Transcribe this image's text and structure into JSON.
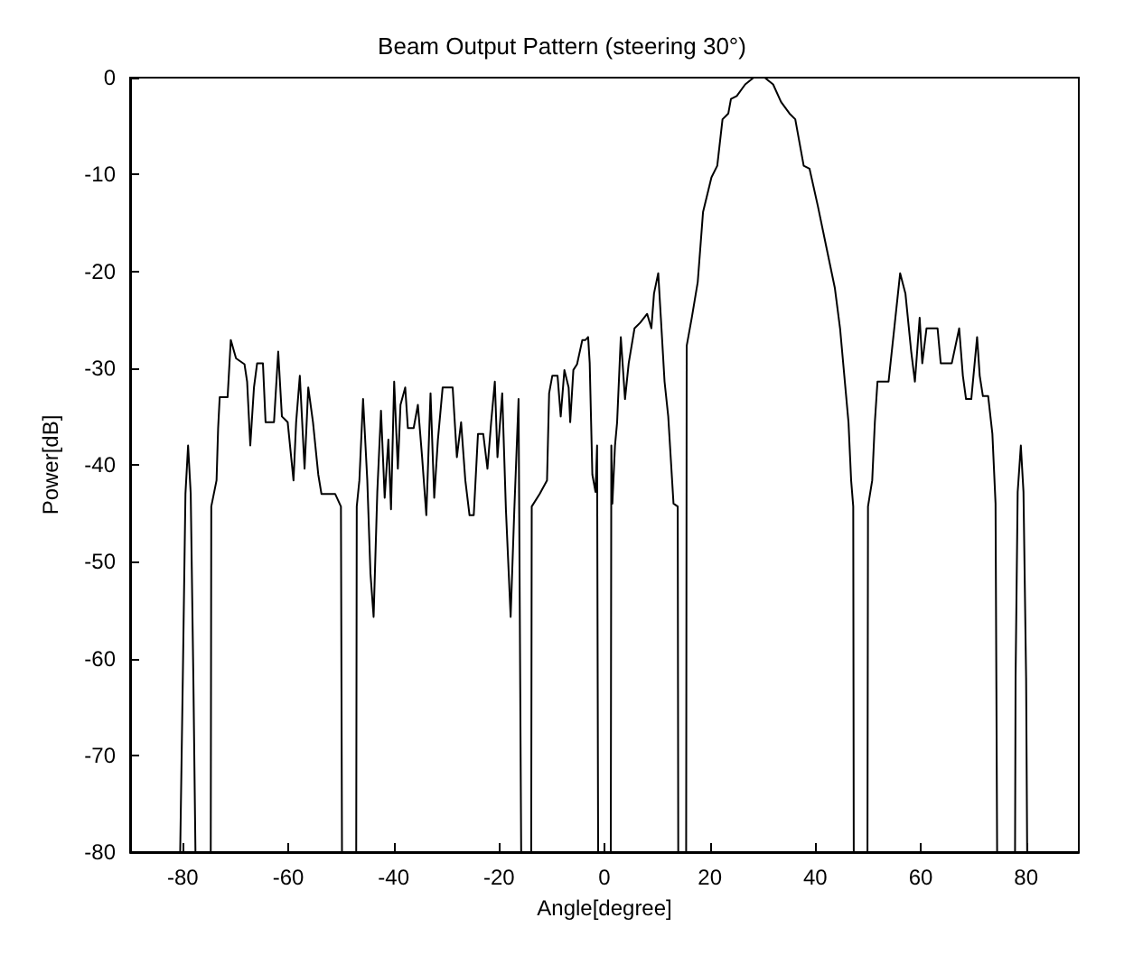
{
  "chart_data": {
    "type": "line",
    "title": "Beam Output Pattern (steering 30°)",
    "xlabel": "Angle[degree]",
    "ylabel": "Power[dB]",
    "xlim": [
      -90,
      90
    ],
    "xticks": [
      -80,
      -60,
      -40,
      -20,
      0,
      20,
      40,
      60,
      80
    ],
    "ylim": [
      -80,
      0
    ],
    "yticks": [
      -80,
      -70,
      -60,
      -50,
      -40,
      -30,
      -20,
      -10,
      0
    ],
    "grid": false,
    "marker": "none",
    "line_style": "solid",
    "series": [
      {
        "color": "#000000",
        "x": [
          -80.5,
          -80,
          -79.5,
          -79,
          -78.5,
          -78,
          -77.6,
          -74.7,
          -74.6,
          -73.6,
          -73.3,
          -73,
          -71.5,
          -70.9,
          -69.9,
          -68.3,
          -67.8,
          -67.2,
          -66.5,
          -65.9,
          -64.8,
          -64.3,
          -62.7,
          -61.9,
          -61.2,
          -60.1,
          -59,
          -58.5,
          -57.8,
          -56.9,
          -56.2,
          -55.3,
          -54.3,
          -53.7,
          -51.1,
          -50,
          -49.8,
          -47.1,
          -47,
          -46.5,
          -45.8,
          -45,
          -44.4,
          -43.8,
          -43.1,
          -42.4,
          -41.7,
          -41,
          -40.5,
          -39.9,
          -39.2,
          -38.7,
          -37.8,
          -37.3,
          -36.2,
          -35.4,
          -34.6,
          -33.8,
          -33,
          -32.3,
          -31.6,
          -30.7,
          -28.8,
          -28,
          -27.2,
          -26.4,
          -25.6,
          -24.8,
          -24,
          -23,
          -22.2,
          -21.5,
          -20.8,
          -20.3,
          -19.4,
          -18.7,
          -17.8,
          -17.1,
          -16.3,
          -15.8,
          -13.9,
          -13.8,
          -12.3,
          -10.9,
          -10.5,
          -9.9,
          -8.9,
          -8.3,
          -7.6,
          -6.8,
          -6.5,
          -5.9,
          -5.2,
          -4.2,
          -3.6,
          -3.1,
          -2.8,
          -2.3,
          -1.7,
          -1.4,
          -1.2,
          1.2,
          1.3,
          1.5,
          2,
          2.4,
          3.1,
          3.9,
          4.6,
          5.7,
          6.8,
          8.1,
          8.9,
          9.4,
          10.2,
          10.7,
          11.4,
          12.1,
          13.1,
          13.9,
          14,
          15.5,
          15.6,
          16.6,
          17.7,
          18.7,
          20.3,
          21.4,
          22.4,
          23.5,
          24,
          25.1,
          26.7,
          28.3,
          30.4,
          32,
          33.5,
          35.1,
          36.2,
          37.8,
          38.9,
          40.5,
          42.1,
          43.7,
          44.7,
          46.3,
          46.8,
          47.2,
          47.3,
          49.9,
          50,
          50.8,
          51.3,
          51.8,
          53.9,
          55.1,
          56.1,
          57.1,
          58.2,
          58.9,
          59.8,
          60.3,
          61.1,
          63.2,
          63.8,
          65.9,
          67.3,
          68,
          68.6,
          69.6,
          70.7,
          71.2,
          71.8,
          72.8,
          73.6,
          74.2,
          74.5,
          77.9,
          78,
          78.4,
          79,
          79.5,
          80,
          80.2
        ],
        "values": [
          -80,
          -62,
          -43,
          -38,
          -43,
          -62,
          -80,
          -80,
          -44.3,
          -41.6,
          -36.2,
          -33,
          -33,
          -27.1,
          -29,
          -29.6,
          -31.4,
          -38,
          -32,
          -29.5,
          -29.5,
          -35.6,
          -35.6,
          -28.3,
          -35,
          -35.6,
          -41.6,
          -35.6,
          -30.8,
          -40.4,
          -32,
          -35.6,
          -41,
          -43,
          -43,
          -44.3,
          -80,
          -80,
          -44.3,
          -41.6,
          -33.2,
          -41.6,
          -51.2,
          -55.7,
          -42.8,
          -34.4,
          -43.4,
          -37.4,
          -44.6,
          -31.4,
          -40.4,
          -33.8,
          -32,
          -36.2,
          -36.2,
          -33.8,
          -39.2,
          -45.2,
          -32.6,
          -43.4,
          -37.4,
          -32,
          -32,
          -39.2,
          -35.6,
          -41.6,
          -45.2,
          -45.2,
          -36.8,
          -36.8,
          -40.4,
          -35.6,
          -31.4,
          -39.2,
          -32.6,
          -44.6,
          -55.7,
          -44.6,
          -33.2,
          -80,
          -80,
          -44.3,
          -43,
          -41.6,
          -32.6,
          -30.8,
          -30.8,
          -35,
          -30.2,
          -32,
          -35.6,
          -30.2,
          -29.6,
          -27.1,
          -27.1,
          -26.8,
          -29.5,
          -41,
          -42.8,
          -38,
          -80,
          -80,
          -38,
          -44,
          -38,
          -35.6,
          -26.8,
          -33.2,
          -29.5,
          -25.9,
          -25.3,
          -24.4,
          -25.9,
          -22.3,
          -20.2,
          -24.8,
          -31.4,
          -35,
          -44,
          -44.3,
          -80,
          -80,
          -27.7,
          -24.7,
          -21.1,
          -13.9,
          -10.3,
          -9.1,
          -4.3,
          -3.7,
          -2.2,
          -1.9,
          -0.7,
          0,
          0,
          -0.7,
          -2.5,
          -3.7,
          -4.3,
          -9.1,
          -9.4,
          -13.3,
          -17.5,
          -21.7,
          -25.9,
          -35.6,
          -41.6,
          -44.3,
          -80,
          -80,
          -44.3,
          -41.6,
          -35.6,
          -31.4,
          -31.4,
          -25.3,
          -20.2,
          -22.3,
          -28.3,
          -31.4,
          -24.8,
          -29.5,
          -25.9,
          -25.9,
          -29.5,
          -29.5,
          -25.9,
          -30.8,
          -33.2,
          -33.2,
          -26.8,
          -30.8,
          -32.9,
          -32.9,
          -36.8,
          -44,
          -80,
          -80,
          -62,
          -42.8,
          -38,
          -42.8,
          -62,
          -80
        ]
      }
    ]
  }
}
